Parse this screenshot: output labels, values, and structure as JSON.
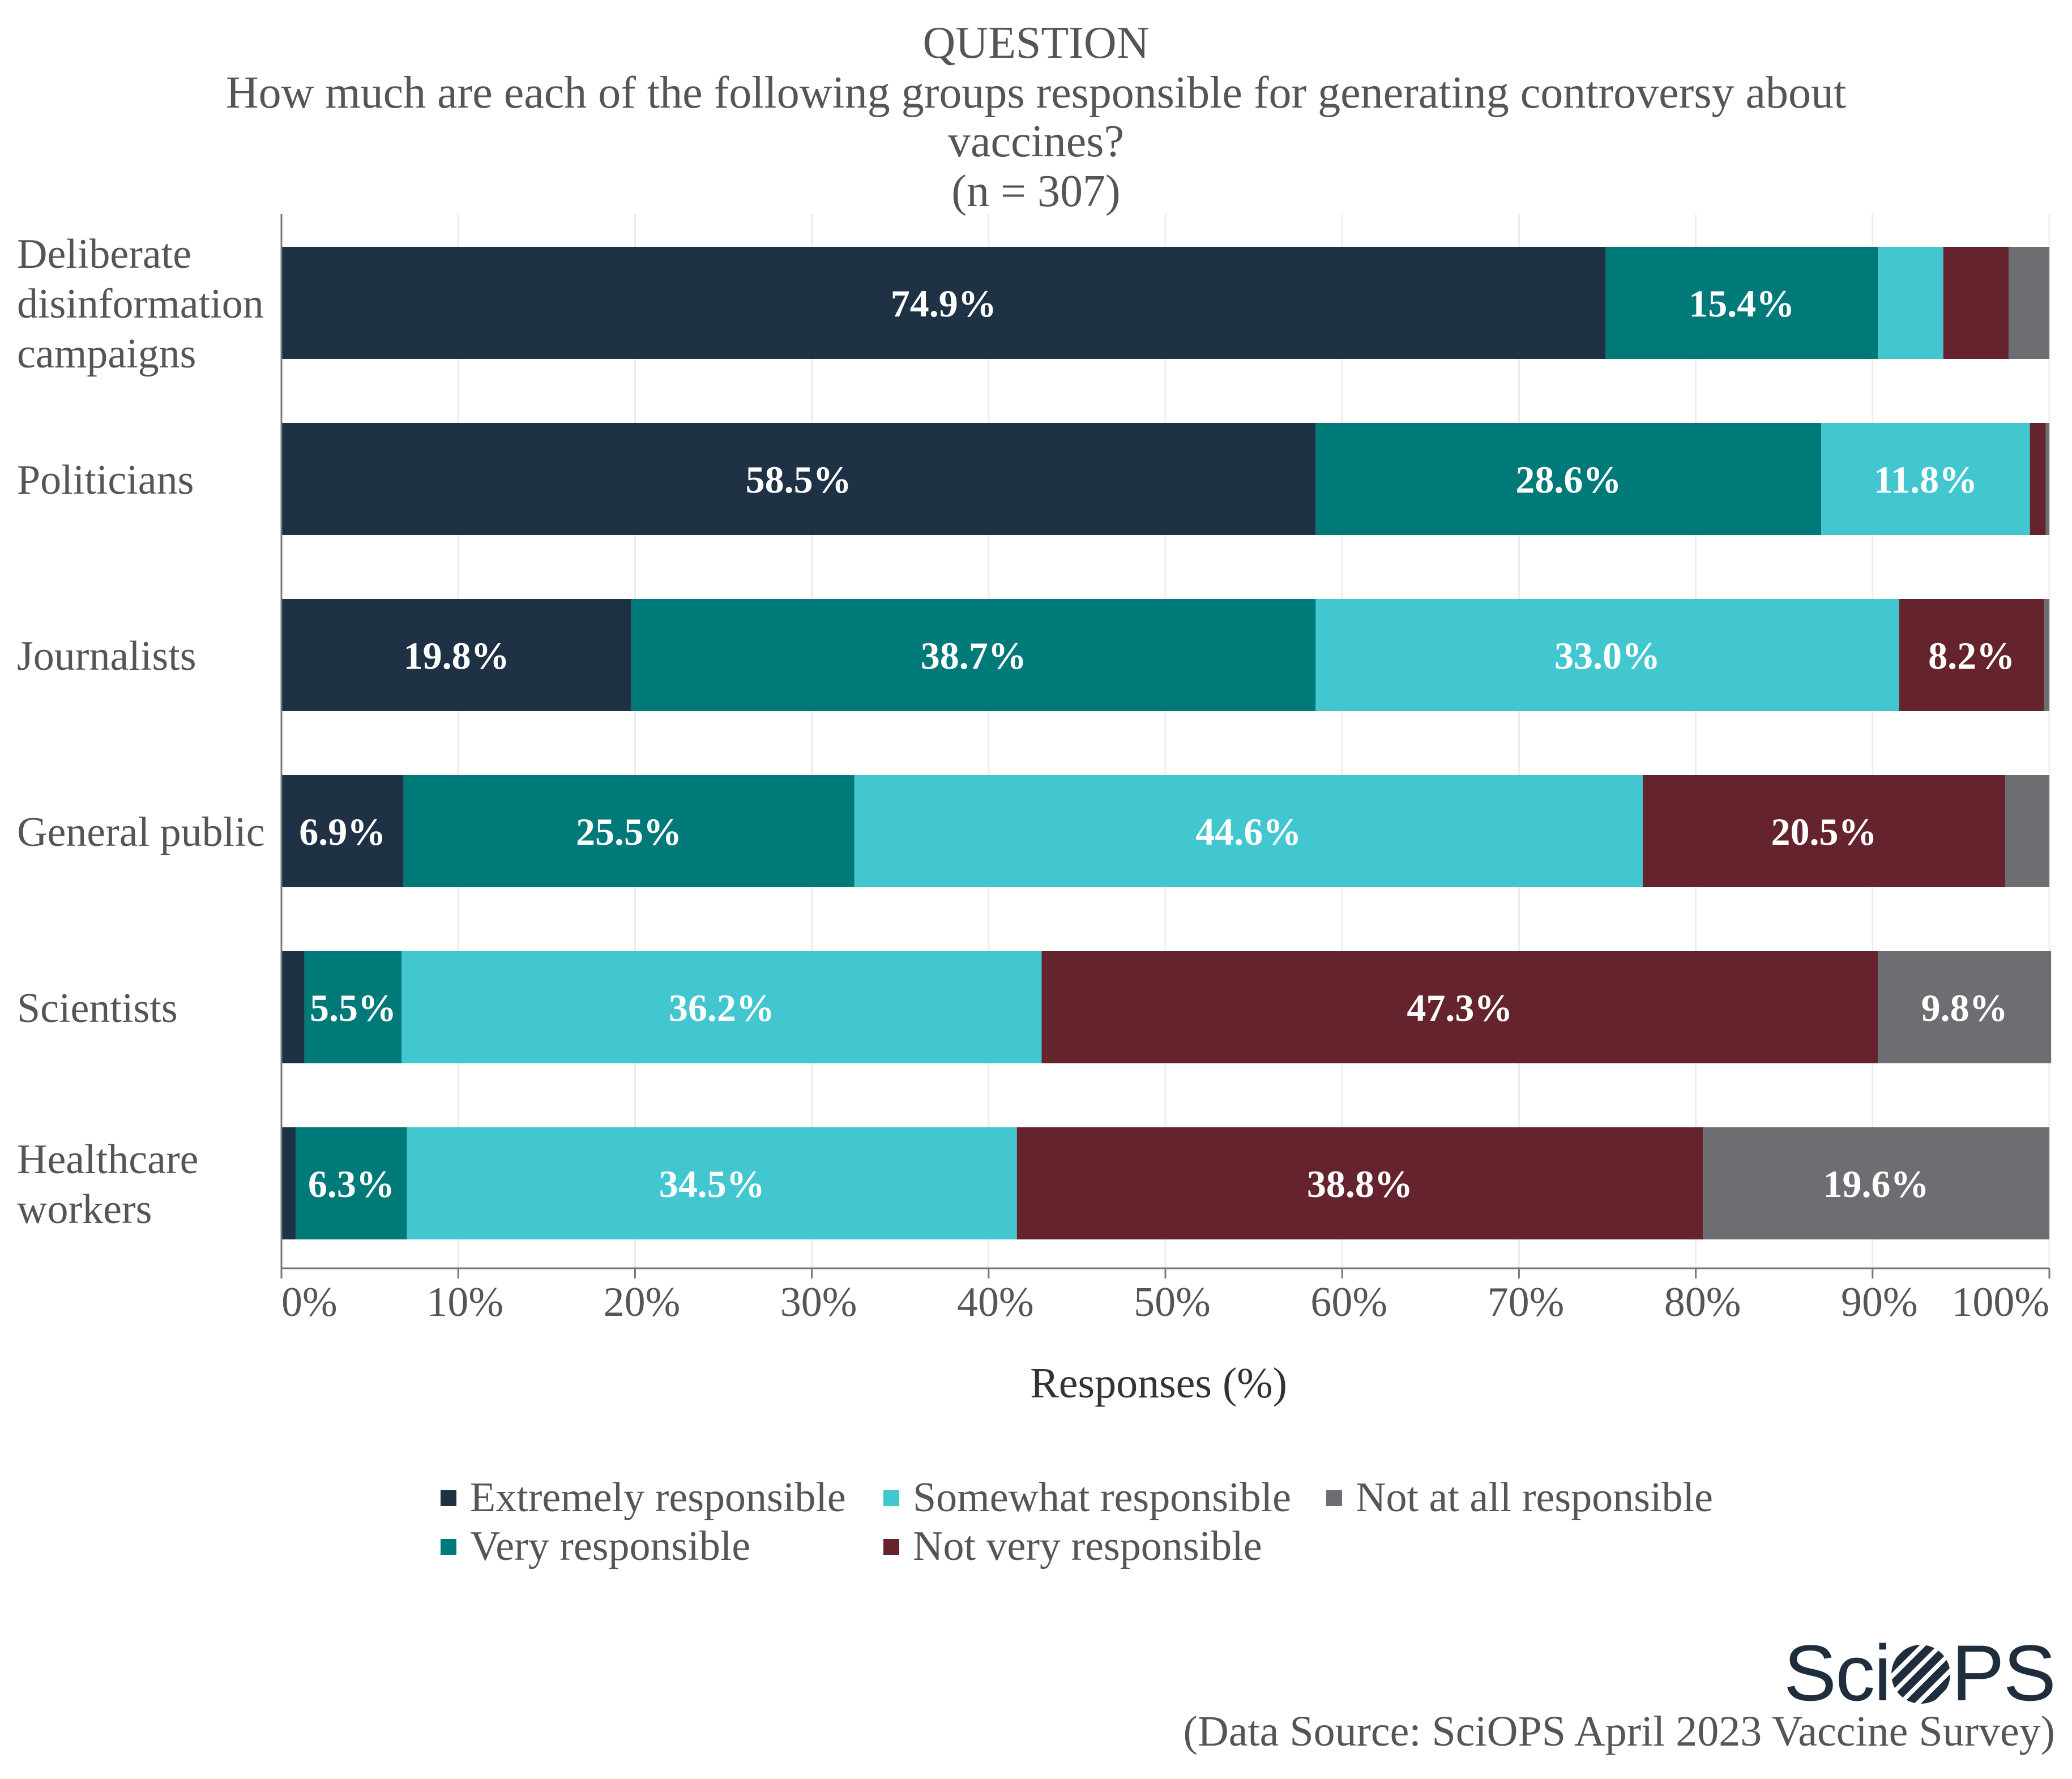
{
  "chart_data": {
    "type": "bar",
    "orientation": "horizontal",
    "stacked": true,
    "title_label": "QUESTION",
    "title_line1": "How much are each of the following groups responsible for generating controversy about",
    "title_line2": "vaccines?",
    "sample_size": "(n = 307)",
    "categories": [
      [
        "Deliberate",
        "disinformation",
        "campaigns"
      ],
      [
        "Politicians"
      ],
      [
        "Journalists"
      ],
      [
        "General public"
      ],
      [
        "Scientists"
      ],
      [
        "Healthcare",
        "workers"
      ]
    ],
    "series": [
      {
        "name": "Extremely responsible",
        "color": "#1f3144",
        "values": [
          74.9,
          58.5,
          19.8,
          6.9,
          1.3,
          0.8
        ],
        "labels": [
          "74.9%",
          "58.5%",
          "19.8%",
          "6.9%",
          "",
          ""
        ]
      },
      {
        "name": "Very responsible",
        "color": "#007a78",
        "values": [
          15.4,
          28.6,
          38.7,
          25.5,
          5.5,
          6.3
        ],
        "labels": [
          "15.4%",
          "28.6%",
          "38.7%",
          "25.5%",
          "5.5%",
          "6.3%"
        ]
      },
      {
        "name": "Somewhat responsible",
        "color": "#42c6cf",
        "values": [
          3.7,
          11.8,
          33.0,
          44.6,
          36.2,
          34.5
        ],
        "labels": [
          "",
          "11.8%",
          "33.0%",
          "44.6%",
          "36.2%",
          "34.5%"
        ]
      },
      {
        "name": "Not very responsible",
        "color": "#65232e",
        "values": [
          3.7,
          0.9,
          8.2,
          20.5,
          47.3,
          38.8
        ],
        "labels": [
          "",
          "",
          "8.2%",
          "20.5%",
          "47.3%",
          "38.8%"
        ]
      },
      {
        "name": "Not at all responsible",
        "color": "#6d6e71",
        "values": [
          2.3,
          0.2,
          0.3,
          2.5,
          9.8,
          19.6
        ],
        "labels": [
          "",
          "",
          "",
          "",
          "9.8%",
          "19.6%"
        ]
      }
    ],
    "xticks": [
      "0%",
      "10%",
      "20%",
      "30%",
      "40%",
      "50%",
      "60%",
      "70%",
      "80%",
      "90%",
      "100%"
    ],
    "xlim": [
      0,
      100
    ],
    "xlabel": "Responses (%)",
    "grid": true,
    "legend_position": "bottom"
  },
  "logo_text": "SciOPS",
  "source": "(Data Source: SciOPS April 2023 Vaccine Survey)"
}
